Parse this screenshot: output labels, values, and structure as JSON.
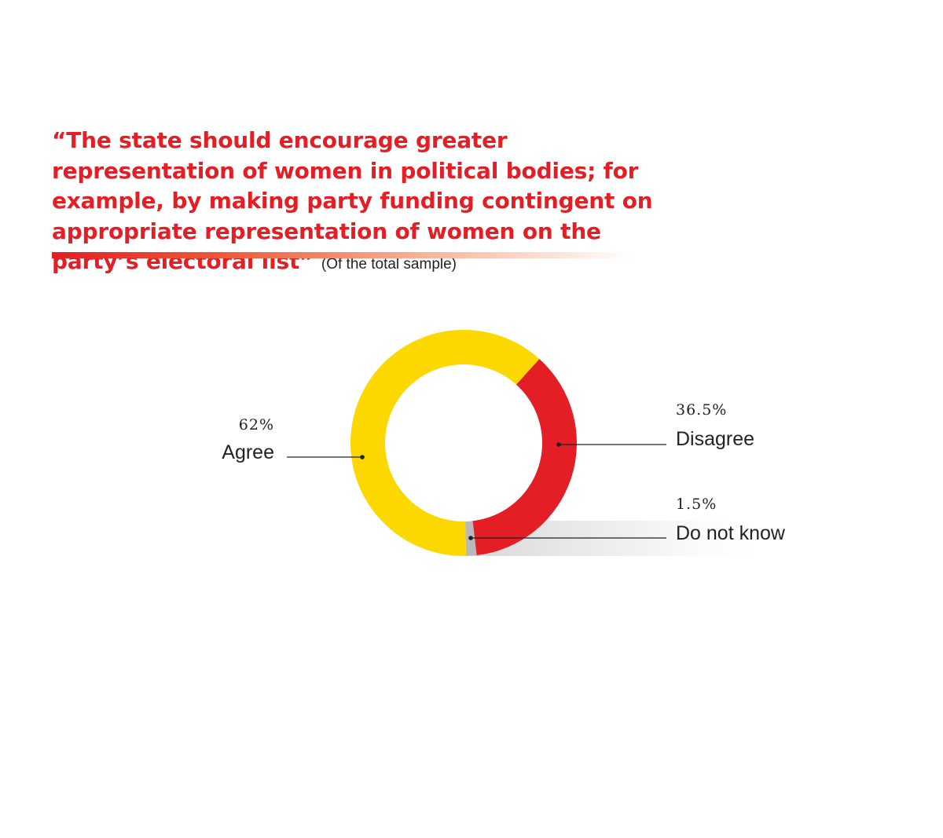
{
  "chart_data": {
    "type": "pie",
    "title": "“The state should encourage greater representation of women in political bodies; for example, by making party funding contingent on appropriate representation of women on the party’s electoral list”",
    "subtitle": "(Of the total sample)",
    "slices": [
      {
        "label": "Agree",
        "value": 62,
        "value_label": "62%",
        "color": "#fdd700"
      },
      {
        "label": "Disagree",
        "value": 36.5,
        "value_label": "36.5%",
        "color": "#e31e24"
      },
      {
        "label": "Do not know",
        "value": 1.5,
        "value_label": "1.5%",
        "color": "#b9b9b9"
      }
    ],
    "donut": true,
    "legend": "none"
  },
  "colors": {
    "accent": "#e31e24",
    "text": "#222222"
  }
}
